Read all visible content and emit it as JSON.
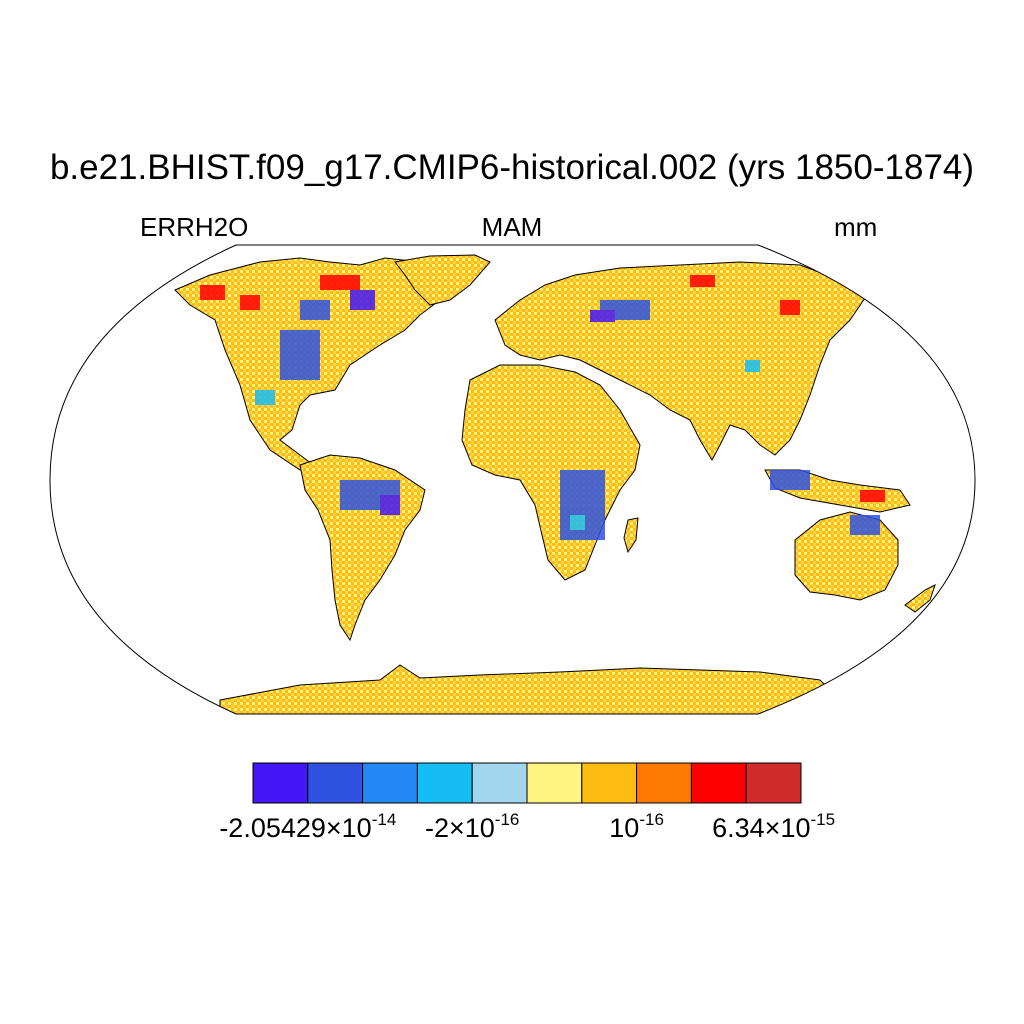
{
  "chart_data": {
    "type": "heatmap",
    "projection": "Robinson",
    "title": "b.e21.BHIST.f09_g17.CMIP6-historical.002 (yrs 1850-1874)",
    "left_label": "ERRH2O",
    "center_label": "MAM",
    "right_label": "mm",
    "colorbar": {
      "colors": [
        "#4316f5",
        "#2f52e0",
        "#2389f5",
        "#16bdf5",
        "#a2d6ee",
        "#fff47f",
        "#ffbd14",
        "#ff7a00",
        "#ff0000",
        "#d12b2b"
      ],
      "label_texts": [
        {
          "mantissa": "-2.05429×10",
          "exponent": "-14"
        },
        {
          "mantissa": "-2×10",
          "exponent": "-16"
        },
        {
          "mantissa": "10",
          "exponent": "-16"
        },
        {
          "mantissa": "6.34×10",
          "exponent": "-15"
        }
      ],
      "values": [
        -2.05429e-14,
        -2e-16,
        1e-16,
        6.34e-15
      ],
      "label_positions": "under 1st, 4th, 7th and 10th color boundaries"
    },
    "data_description": "Land-only field; mostly near-zero (yellow/orange) with negative (blue) patches over eastern North America, Amazon, central Africa, SE Asia and positive (red) scatter in high northern latitudes."
  }
}
